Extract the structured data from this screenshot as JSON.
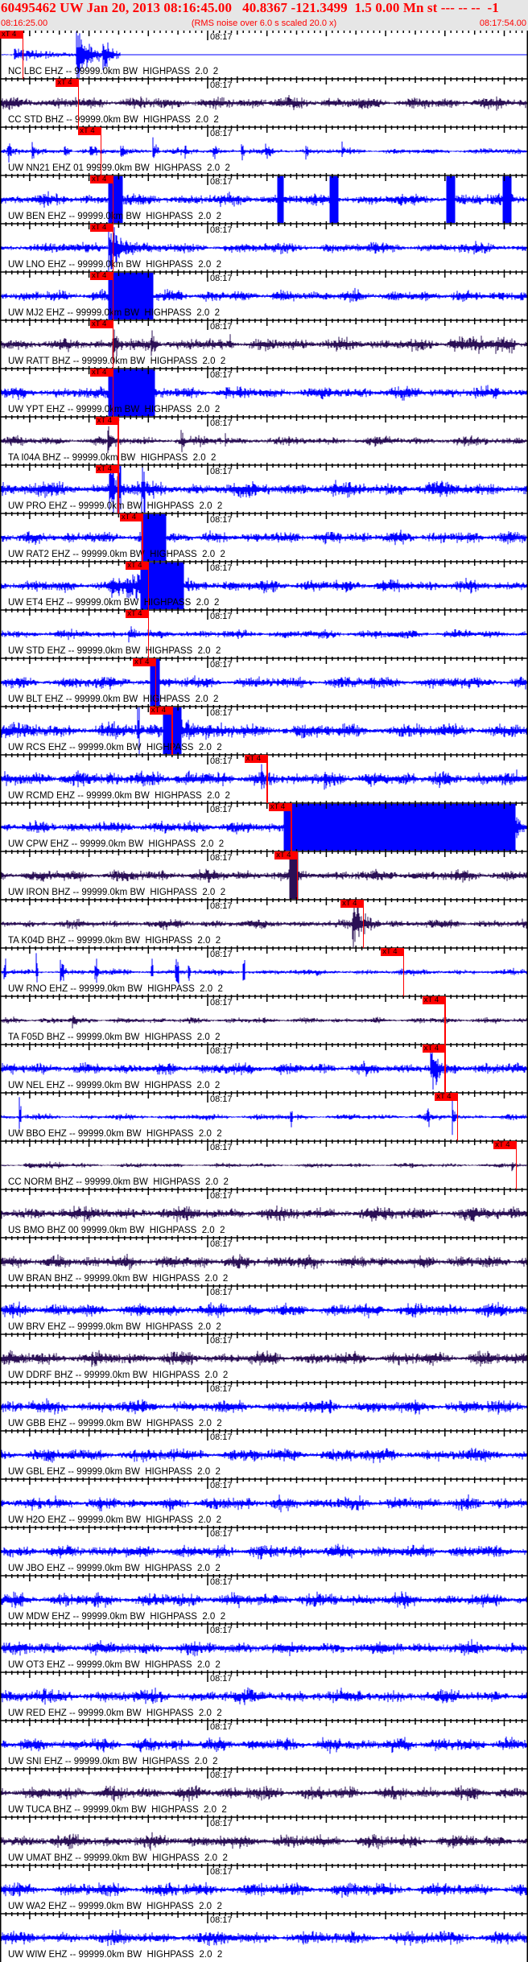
{
  "header": {
    "title": "60495462 UW Jan 20, 2013 08:16:45.00   40.8367 -121.3499  1.5 0.00 Mn st --- -- --  -1",
    "start_time": "08:16:25.00",
    "note": "(RMS noise over 6.0 s scaled 20.0 x)",
    "end_time": "08:17:54.00"
  },
  "axis": {
    "minute_label": "08:17"
  },
  "colors": {
    "header_text": "#ff0000",
    "header_bg": "#e6e6e6",
    "ehz_trace": "#0000ff",
    "bhz_trace": "#2a0f55",
    "pick": "#ff0000"
  },
  "traces": [
    {
      "label": "NC LBC EHZ -- 99999.0km BW  HIGHPASS  2.0  2",
      "pick": {
        "label": "xT 4",
        "time": "08:16:28.8"
      }
    },
    {
      "label": "CC STD BHZ -- 99999.0km BW  HIGHPASS  2.0  2",
      "pick": {
        "label": "xT 4",
        "time": "08:16:38.2"
      }
    },
    {
      "label": "UW NN21 EHZ 01 99999.0km BW  HIGHPASS  2.0  2",
      "pick": {
        "label": "xT 4",
        "time": "08:16:42.0"
      }
    },
    {
      "label": "UW BEN EHZ -- 99999.0km BW  HIGHPASS  2.0  2",
      "pick": {
        "label": "xT 4",
        "time": "08:16:44.0"
      }
    },
    {
      "label": "UW LNO EHZ -- 99999.0km BW  HIGHPASS  2.0  2",
      "pick": {
        "label": "xT 4",
        "time": "08:16:44.0"
      }
    },
    {
      "label": "UW MJ2 EHZ -- 99999.0km BW  HIGHPASS  2.0  2",
      "pick": {
        "label": "xT 4",
        "time": "08:16:44.0"
      }
    },
    {
      "label": "UW RATT BHZ -- 99999.0km BW  HIGHPASS  2.0  2",
      "pick": {
        "label": "xT 4",
        "time": "08:16:44.0"
      }
    },
    {
      "label": "UW YPT EHZ -- 99999.0km BW  HIGHPASS  2.0  2",
      "pick": {
        "label": "xT 4",
        "time": "08:16:44.0"
      }
    },
    {
      "label": "TA I04A BHZ -- 99999.0km BW  HIGHPASS  2.0  2",
      "pick": {
        "label": "xT 4",
        "time": "08:16:44.9"
      }
    },
    {
      "label": "UW PRO EHZ -- 99999.0km BW  HIGHPASS  2.0  2",
      "pick": {
        "label": "xT 4",
        "time": "08:16:44.9"
      }
    },
    {
      "label": "UW RAT2 EHZ -- 99999.0km BW  HIGHPASS  2.0  2",
      "pick": {
        "label": "xT 4",
        "time": "08:16:49.0"
      }
    },
    {
      "label": "UW ET4 EHZ -- 99999.0km BW  HIGHPASS  2.0  2",
      "pick": {
        "label": "xT 4",
        "time": "08:16:50.0"
      }
    },
    {
      "label": "UW STD EHZ -- 99999.0km BW  HIGHPASS  2.0  2",
      "pick": {
        "label": "xT 4",
        "time": "08:16:50.0"
      }
    },
    {
      "label": "UW BLT EHZ -- 99999.0km BW  HIGHPASS  2.0  2",
      "pick": {
        "label": "xT 4",
        "time": "08:16:51.2"
      }
    },
    {
      "label": "UW RCS EHZ -- 99999.0km BW  HIGHPASS  2.0  2",
      "pick": {
        "label": "xT 4",
        "time": "08:16:54.0"
      }
    },
    {
      "label": "UW RCMD EHZ -- 99999.0km BW  HIGHPASS  2.0  2",
      "pick": {
        "label": "xT 4",
        "time": "08:17:10.0"
      }
    },
    {
      "label": "UW CPW EHZ -- 99999.0km BW  HIGHPASS  2.0  2",
      "pick": {
        "label": "xT 4",
        "time": "08:17:14.1"
      }
    },
    {
      "label": "UW IRON BHZ -- 99999.0km BW  HIGHPASS  2.0  2",
      "pick": {
        "label": "xT 4",
        "time": "08:17:15.1"
      }
    },
    {
      "label": "TA K04D BHZ -- 99999.0km BW  HIGHPASS  2.0  2",
      "pick": {
        "label": "xT 4",
        "time": "08:17:26.2"
      }
    },
    {
      "label": "UW RNO EHZ -- 99999.0km BW  HIGHPASS  2.0  2",
      "pick": {
        "label": "xT 4",
        "time": "08:17:33.0"
      }
    },
    {
      "label": "TA F05D BHZ -- 99999.0km BW  HIGHPASS  2.0  2",
      "pick": {
        "label": "xT 4",
        "time": "08:17:40.0"
      }
    },
    {
      "label": "UW NEL EHZ -- 99999.0km BW  HIGHPASS  2.0  2",
      "pick": {
        "label": "xT 4",
        "time": "08:17:40.0"
      }
    },
    {
      "label": "UW BBO EHZ -- 99999.0km BW  HIGHPASS  2.0  2",
      "pick": {
        "label": "xT 4",
        "time": "08:17:42.1"
      }
    },
    {
      "label": "CC NORM BHZ -- 99999.0km BW  HIGHPASS  2.0  2",
      "pick": {
        "label": "xT 4",
        "time": "08:17:52.0"
      }
    },
    {
      "label": "US BMO BHZ 00 99999.0km BW  HIGHPASS  2.0  2"
    },
    {
      "label": "UW BRAN BHZ -- 99999.0km BW  HIGHPASS  2.0  2"
    },
    {
      "label": "UW BRV EHZ -- 99999.0km BW  HIGHPASS  2.0  2"
    },
    {
      "label": "UW DDRF BHZ -- 99999.0km BW  HIGHPASS  2.0  2"
    },
    {
      "label": "UW GBB EHZ -- 99999.0km BW  HIGHPASS  2.0  2"
    },
    {
      "label": "UW GBL EHZ -- 99999.0km BW  HIGHPASS  2.0  2"
    },
    {
      "label": "UW H2O EHZ -- 99999.0km BW  HIGHPASS  2.0  2"
    },
    {
      "label": "UW JBO EHZ -- 99999.0km BW  HIGHPASS  2.0  2"
    },
    {
      "label": "UW MDW EHZ -- 99999.0km BW  HIGHPASS  2.0  2"
    },
    {
      "label": "UW OT3 EHZ -- 99999.0km BW  HIGHPASS  2.0  2"
    },
    {
      "label": "UW RED EHZ -- 99999.0km BW  HIGHPASS  2.0  2"
    },
    {
      "label": "UW SNI EHZ -- 99999.0km BW  HIGHPASS  2.0  2"
    },
    {
      "label": "UW TUCA BHZ -- 99999.0km BW  HIGHPASS  2.0  2"
    },
    {
      "label": "UW UMAT BHZ -- 99999.0km BW  HIGHPASS  2.0  2"
    },
    {
      "label": "UW WA2 EHZ -- 99999.0km BW  HIGHPASS  2.0  2"
    },
    {
      "label": "UW WIW EHZ -- 99999.0km BW  HIGHPASS  2.0  2"
    }
  ]
}
